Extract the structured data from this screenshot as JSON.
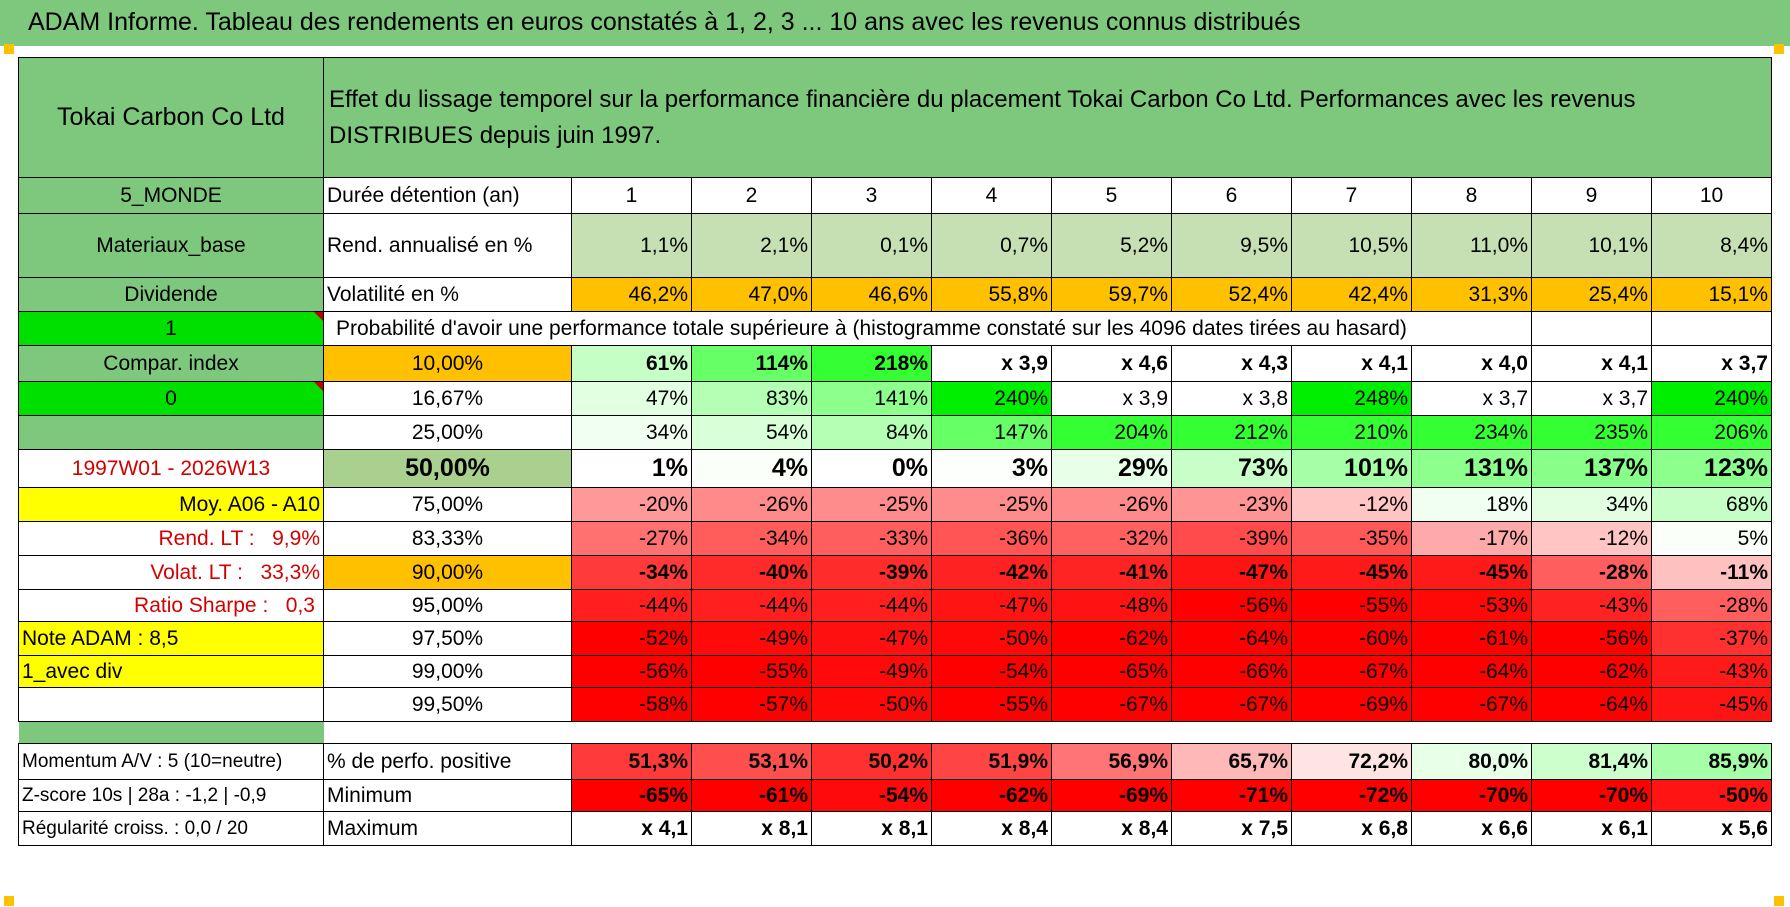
{
  "title": "ADAM Informe. Tableau des rendements en euros constatés à 1, 2, 3 ... 10 ans avec les revenus connus distribués",
  "header": {
    "company": "Tokai Carbon Co Ltd",
    "description": "Effet du lissage temporel sur la performance financière du placement Tokai Carbon Co Ltd. Performances avec les revenus DISTRIBUES depuis juin 1997."
  },
  "side": {
    "zone": "5_MONDE",
    "sector": "Materiaux_base",
    "type": "Dividende",
    "flag1": "1",
    "compar": "Compar. index",
    "flag0": "0",
    "period": "1997W01 - 2026W13",
    "moy": "Moy. A06 - A10",
    "rend_lt_label": "Rend. LT :",
    "rend_lt_value": "9,9%",
    "volat_lt_label": "Volat. LT :",
    "volat_lt_value": "33,3%",
    "sharpe_label": "Ratio Sharpe :",
    "sharpe_value": "0,3",
    "note": "Note ADAM : 8,5",
    "div": "1_avec div"
  },
  "years_label": "Durée détention (an)",
  "years": [
    "1",
    "2",
    "3",
    "4",
    "5",
    "6",
    "7",
    "8",
    "9",
    "10"
  ],
  "rend": {
    "label": "Rend. annualisé en %",
    "values": [
      "1,1%",
      "2,1%",
      "0,1%",
      "0,7%",
      "5,2%",
      "9,5%",
      "10,5%",
      "11,0%",
      "10,1%",
      "8,4%"
    ]
  },
  "volat": {
    "label": "Volatilité en %",
    "values": [
      "46,2%",
      "47,0%",
      "46,6%",
      "55,8%",
      "59,7%",
      "52,4%",
      "42,4%",
      "31,3%",
      "25,4%",
      "15,1%"
    ]
  },
  "prob_title": "Probabilité d'avoir une performance totale supérieure à (histogramme constaté sur les 4096 dates tirées au hasard)",
  "prob_rows": [
    {
      "pct": "10,00%",
      "values": [
        "61%",
        "114%",
        "218%",
        "x 3,9",
        "x 4,6",
        "x 4,3",
        "x 4,1",
        "x 4,0",
        "x 4,1",
        "x 3,7"
      ]
    },
    {
      "pct": "16,67%",
      "values": [
        "47%",
        "83%",
        "141%",
        "240%",
        "x 3,9",
        "x 3,8",
        "248%",
        "x 3,7",
        "x 3,7",
        "240%"
      ]
    },
    {
      "pct": "25,00%",
      "values": [
        "34%",
        "54%",
        "84%",
        "147%",
        "204%",
        "212%",
        "210%",
        "234%",
        "235%",
        "206%"
      ]
    },
    {
      "pct": "50,00%",
      "values": [
        "1%",
        "4%",
        "0%",
        "3%",
        "29%",
        "73%",
        "101%",
        "131%",
        "137%",
        "123%"
      ]
    },
    {
      "pct": "75,00%",
      "values": [
        "-20%",
        "-26%",
        "-25%",
        "-25%",
        "-26%",
        "-23%",
        "-12%",
        "18%",
        "34%",
        "68%"
      ]
    },
    {
      "pct": "83,33%",
      "values": [
        "-27%",
        "-34%",
        "-33%",
        "-36%",
        "-32%",
        "-39%",
        "-35%",
        "-17%",
        "-12%",
        "5%"
      ]
    },
    {
      "pct": "90,00%",
      "values": [
        "-34%",
        "-40%",
        "-39%",
        "-42%",
        "-41%",
        "-47%",
        "-45%",
        "-45%",
        "-28%",
        "-11%"
      ]
    },
    {
      "pct": "95,00%",
      "values": [
        "-44%",
        "-44%",
        "-44%",
        "-47%",
        "-48%",
        "-56%",
        "-55%",
        "-53%",
        "-43%",
        "-28%"
      ]
    },
    {
      "pct": "97,50%",
      "values": [
        "-52%",
        "-49%",
        "-47%",
        "-50%",
        "-62%",
        "-64%",
        "-60%",
        "-61%",
        "-56%",
        "-37%"
      ]
    },
    {
      "pct": "99,00%",
      "values": [
        "-56%",
        "-55%",
        "-49%",
        "-54%",
        "-65%",
        "-66%",
        "-67%",
        "-64%",
        "-62%",
        "-43%"
      ]
    },
    {
      "pct": "99,50%",
      "values": [
        "-58%",
        "-57%",
        "-50%",
        "-55%",
        "-67%",
        "-67%",
        "-69%",
        "-67%",
        "-64%",
        "-45%"
      ]
    }
  ],
  "bottom": {
    "momentum": "Momentum A/V : 5 (10=neutre)",
    "zscore": "Z-score 10s | 28a : -1,2 | -0,9",
    "regul": "Régularité croiss. : 0,0 / 20",
    "pos": {
      "label": "% de perfo. positive",
      "values": [
        "51,3%",
        "53,1%",
        "50,2%",
        "51,9%",
        "56,9%",
        "65,7%",
        "72,2%",
        "80,0%",
        "81,4%",
        "85,9%"
      ]
    },
    "min": {
      "label": "Minimum",
      "values": [
        "-65%",
        "-61%",
        "-54%",
        "-62%",
        "-69%",
        "-71%",
        "-72%",
        "-70%",
        "-70%",
        "-50%"
      ]
    },
    "max": {
      "label": "Maximum",
      "values": [
        "x 4,1",
        "x 8,1",
        "x 8,1",
        "x 8,4",
        "x 8,4",
        "x 7,5",
        "x 6,8",
        "x 6,6",
        "x 6,1",
        "x 5,6"
      ]
    }
  },
  "colors": {
    "header_green": "#7ec87e",
    "bright_green": "#00e000",
    "orange": "#ffc000",
    "yellow": "#ffff00",
    "label_red": "#d40000"
  }
}
